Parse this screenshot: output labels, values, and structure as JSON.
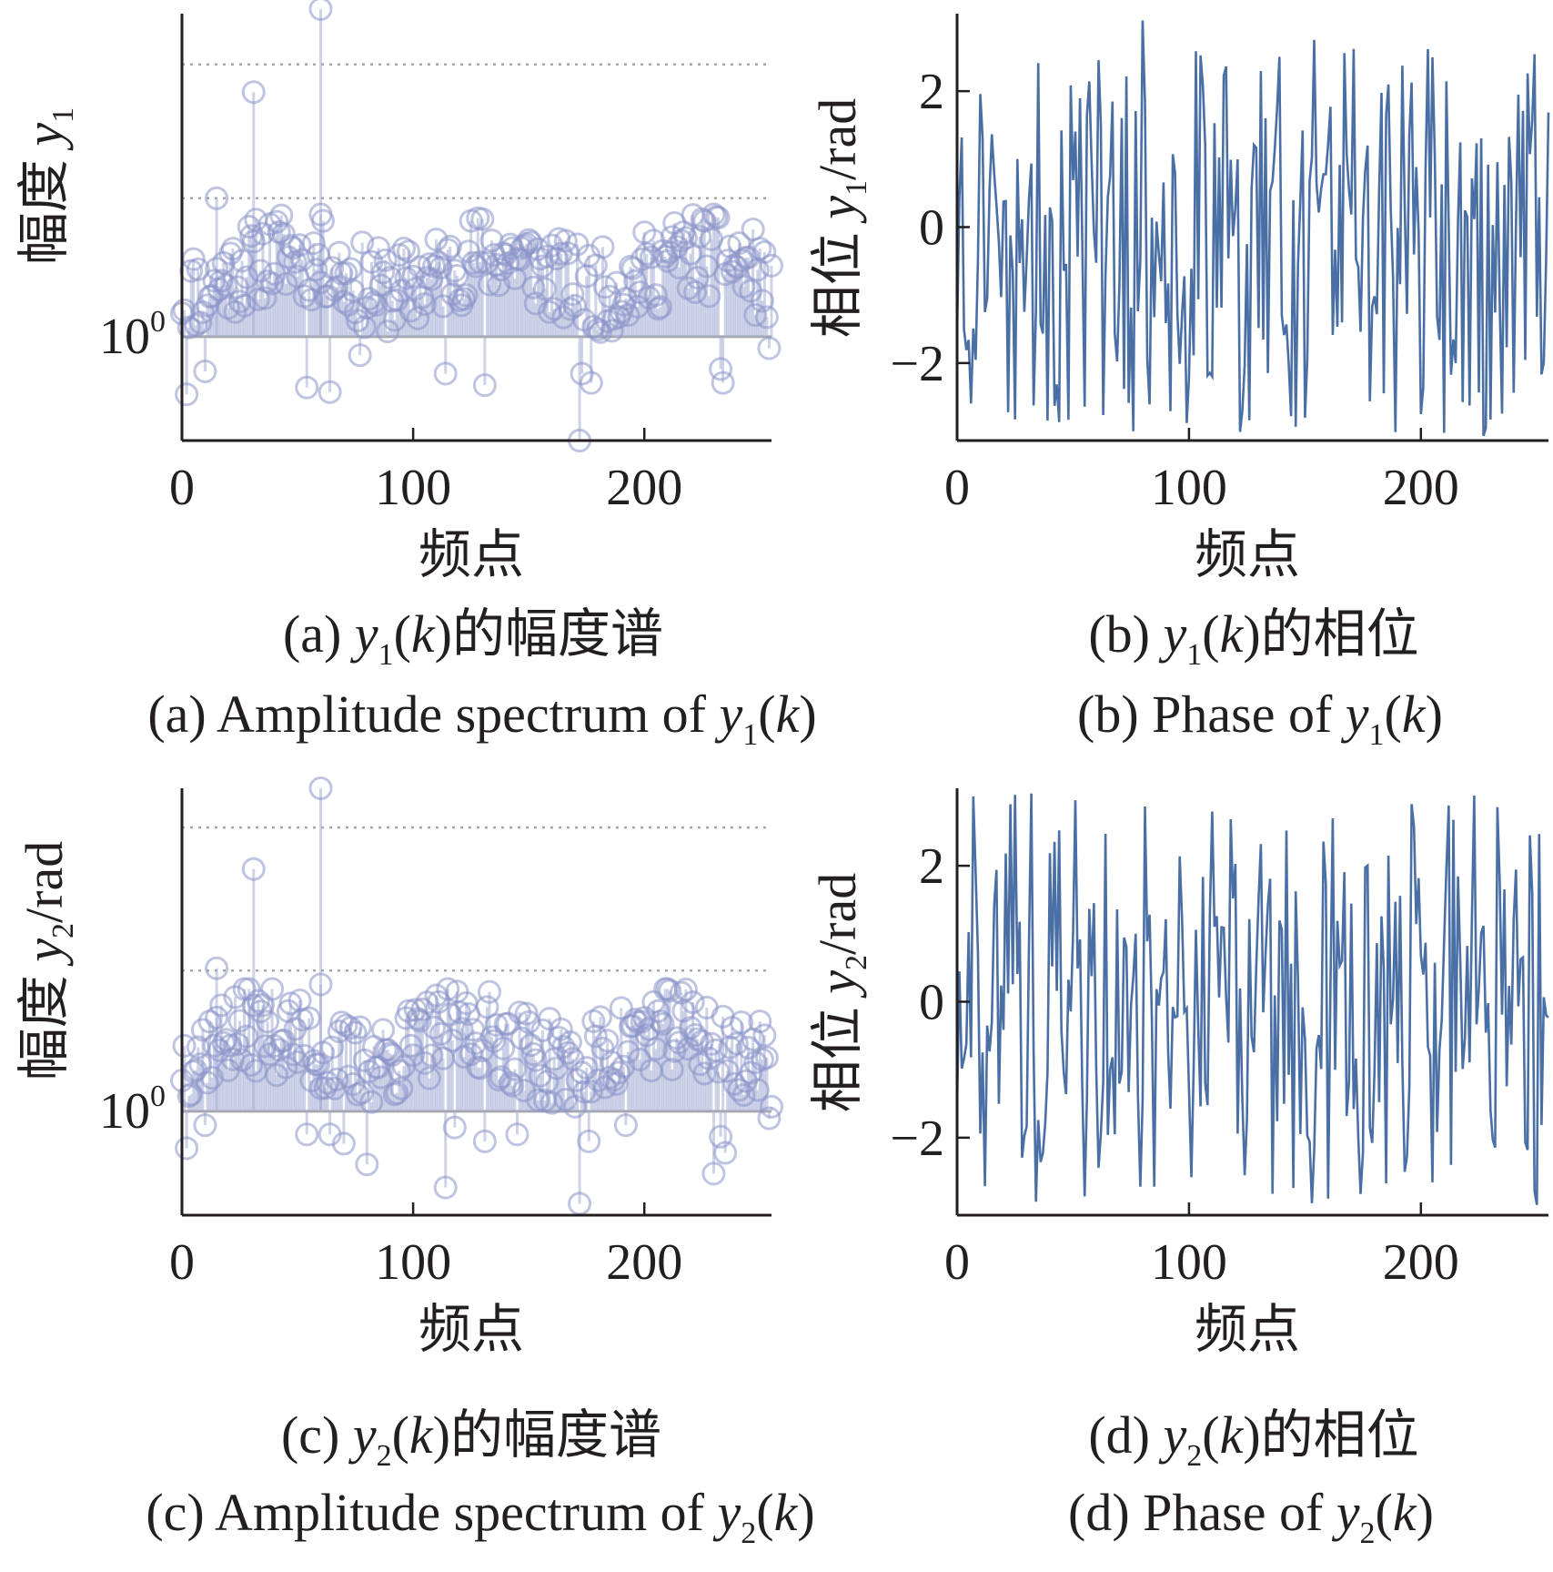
{
  "style": {
    "stem_color": "#a8aed6",
    "marker_color": "#8a93c8",
    "line_color": "#4a6fa5",
    "grid_color": "#a6a6a6",
    "axis_color": "#231f20"
  },
  "captions": {
    "a_cn_pre": "(a) ",
    "a_var": "y",
    "a_sub": "1",
    "a_k": "(k)",
    "a_cn_post": "的幅度谱",
    "a_en_pre": "(a) Amplitude spectrum of ",
    "b_cn_pre": "(b) ",
    "b_var": "y",
    "b_sub": "1",
    "b_k": "(k)",
    "b_cn_post": "的相位",
    "b_en_pre": "(b) Phase of ",
    "c_cn_pre": "(c) ",
    "c_var": "y",
    "c_sub": "2",
    "c_k": "(k)",
    "c_cn_post": "的幅度谱",
    "c_en_pre": "(c) Amplitude spectrum of ",
    "d_cn_pre": "(d) ",
    "d_var": "y",
    "d_sub": "2",
    "d_k": "(k)",
    "d_cn_post": "的相位",
    "d_en_pre": "(d) Phase of "
  },
  "chart_data": [
    {
      "id": "a",
      "type": "stem",
      "xlabel": "频点",
      "ylabel": "幅度 y1",
      "ylabel_cn": "幅度 ",
      "ylabel_var": "y",
      "ylabel_sub": "1",
      "ylabel_unit": "",
      "y_scale": "log",
      "xlim": [
        0,
        255
      ],
      "ylim_log10": [
        -0.45,
        1.4
      ],
      "x_ticks": [
        "0",
        "100",
        "200"
      ],
      "x_tick_values": [
        0,
        100,
        200
      ],
      "y_tick_labels": [
        {
          "base": "10",
          "exp": "0"
        }
      ],
      "y_tick_values_log10": [
        0
      ],
      "gridlines_log10": [
        0,
        0.6,
        1.18
      ],
      "baseline": 1,
      "highlights": [
        {
          "x": 31,
          "log10y": 1.06
        },
        {
          "x": 60,
          "log10y": 1.42
        },
        {
          "x": 15,
          "log10y": 0.6
        },
        {
          "x": 60,
          "log10y": 0.53
        }
      ],
      "low_points": [
        {
          "x": 2,
          "log10y": -0.25
        },
        {
          "x": 10,
          "log10y": -0.15
        },
        {
          "x": 54,
          "log10y": -0.22
        },
        {
          "x": 64,
          "log10y": -0.24
        },
        {
          "x": 77,
          "log10y": -0.08
        },
        {
          "x": 114,
          "log10y": -0.16
        },
        {
          "x": 131,
          "log10y": -0.21
        },
        {
          "x": 172,
          "log10y": -0.45
        },
        {
          "x": 173,
          "log10y": -0.16
        },
        {
          "x": 177,
          "log10y": -0.2
        },
        {
          "x": 233,
          "log10y": -0.14
        },
        {
          "x": 234,
          "log10y": -0.2
        },
        {
          "x": 254,
          "log10y": -0.05
        }
      ],
      "n_points": 256,
      "log10y_range_typical": [
        0.08,
        0.48
      ],
      "seed": 11
    },
    {
      "id": "b",
      "type": "line",
      "xlabel": "频点",
      "ylabel": "相位 y1/rad",
      "ylabel_cn": "相位 ",
      "ylabel_var": "y",
      "ylabel_sub": "1",
      "ylabel_unit": "/rad",
      "xlim": [
        0,
        255
      ],
      "ylim": [
        -3.14,
        3.14
      ],
      "x_ticks": [
        "0",
        "100",
        "200"
      ],
      "x_tick_values": [
        0,
        100,
        200
      ],
      "y_ticks": [
        "2",
        "0",
        "−2"
      ],
      "y_tick_values": [
        2,
        0,
        -2
      ],
      "n_points": 256,
      "seed": 23
    },
    {
      "id": "c",
      "type": "stem",
      "xlabel": "频点",
      "ylabel": "幅度 y2/rad",
      "ylabel_cn": "幅度 ",
      "ylabel_var": "y",
      "ylabel_sub": "2",
      "ylabel_unit": "/rad",
      "y_scale": "log",
      "xlim": [
        0,
        255
      ],
      "ylim_log10": [
        -0.45,
        1.4
      ],
      "x_ticks": [
        "0",
        "100",
        "200"
      ],
      "x_tick_values": [
        0,
        100,
        200
      ],
      "y_tick_labels": [
        {
          "base": "10",
          "exp": "0"
        }
      ],
      "y_tick_values_log10": [
        0
      ],
      "gridlines_log10": [
        0,
        0.61,
        1.23
      ],
      "baseline": 1,
      "highlights": [
        {
          "x": 31,
          "log10y": 1.05
        },
        {
          "x": 60,
          "log10y": 1.4
        },
        {
          "x": 15,
          "log10y": 0.62
        },
        {
          "x": 60,
          "log10y": 0.55
        }
      ],
      "low_points": [
        {
          "x": 2,
          "log10y": -0.16
        },
        {
          "x": 10,
          "log10y": -0.06
        },
        {
          "x": 54,
          "log10y": -0.1
        },
        {
          "x": 64,
          "log10y": -0.1
        },
        {
          "x": 70,
          "log10y": -0.14
        },
        {
          "x": 80,
          "log10y": -0.23
        },
        {
          "x": 114,
          "log10y": -0.33
        },
        {
          "x": 118,
          "log10y": -0.07
        },
        {
          "x": 131,
          "log10y": -0.13
        },
        {
          "x": 145,
          "log10y": -0.1
        },
        {
          "x": 172,
          "log10y": -0.4
        },
        {
          "x": 176,
          "log10y": -0.13
        },
        {
          "x": 192,
          "log10y": -0.06
        },
        {
          "x": 230,
          "log10y": -0.27
        },
        {
          "x": 233,
          "log10y": -0.11
        },
        {
          "x": 235,
          "log10y": -0.18
        },
        {
          "x": 254,
          "log10y": -0.03
        }
      ],
      "n_points": 256,
      "log10y_range_typical": [
        0.08,
        0.48
      ],
      "seed": 37
    },
    {
      "id": "d",
      "type": "line",
      "xlabel": "频点",
      "ylabel": "相位 y2/rad",
      "ylabel_cn": "相位 ",
      "ylabel_var": "y",
      "ylabel_sub": "2",
      "ylabel_unit": "/rad",
      "xlim": [
        0,
        255
      ],
      "ylim": [
        -3.14,
        3.14
      ],
      "x_ticks": [
        "0",
        "100",
        "200"
      ],
      "x_tick_values": [
        0,
        100,
        200
      ],
      "y_ticks": [
        "2",
        "0",
        "−2"
      ],
      "y_tick_values": [
        2,
        0,
        -2
      ],
      "n_points": 256,
      "seed": 41
    }
  ]
}
